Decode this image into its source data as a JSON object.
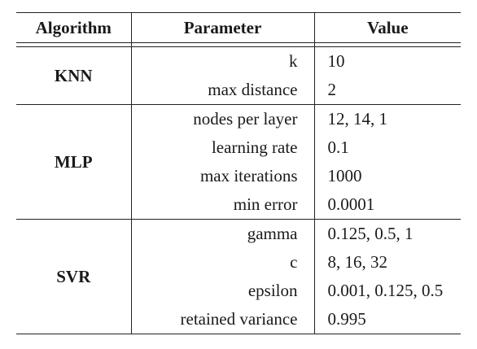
{
  "table": {
    "headers": [
      "Algorithm",
      "Parameter",
      "Value"
    ],
    "groups": [
      {
        "algorithm": "KNN",
        "rows": [
          {
            "parameter": "k",
            "value": "10"
          },
          {
            "parameter": "max distance",
            "value": "2"
          }
        ]
      },
      {
        "algorithm": "MLP",
        "rows": [
          {
            "parameter": "nodes per layer",
            "value": "12, 14, 1"
          },
          {
            "parameter": "learning rate",
            "value": "0.1"
          },
          {
            "parameter": "max iterations",
            "value": "1000"
          },
          {
            "parameter": "min error",
            "value": "0.0001"
          }
        ]
      },
      {
        "algorithm": "SVR",
        "rows": [
          {
            "parameter": "gamma",
            "value": "0.125, 0.5, 1"
          },
          {
            "parameter": "c",
            "value": "8, 16, 32"
          },
          {
            "parameter": "epsilon",
            "value": "0.001, 0.125, 0.5"
          },
          {
            "parameter": "retained variance",
            "value": "0.995"
          }
        ]
      }
    ]
  }
}
